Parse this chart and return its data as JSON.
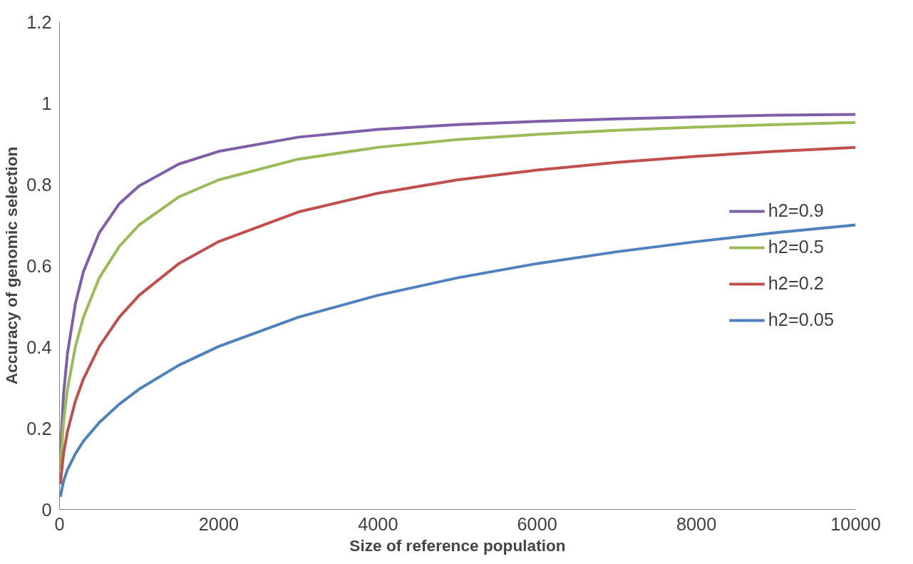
{
  "chart_data": {
    "type": "line",
    "xlabel": "Size of reference population",
    "ylabel": "Accuracy of genomic selection",
    "x": [
      10,
      50,
      100,
      200,
      300,
      500,
      750,
      1000,
      1500,
      2000,
      3000,
      4000,
      5000,
      6000,
      7000,
      8000,
      9000,
      10000
    ],
    "series": [
      {
        "name": "h2=0.9",
        "color": "#7f5fa8",
        "values": [
          0.13,
          0.282,
          0.384,
          0.507,
          0.585,
          0.681,
          0.752,
          0.796,
          0.85,
          0.881,
          0.916,
          0.935,
          0.947,
          0.955,
          0.961,
          0.966,
          0.97,
          0.972
        ]
      },
      {
        "name": "h2=0.5",
        "color": "#9bbb59",
        "values": [
          0.098,
          0.214,
          0.296,
          0.401,
          0.473,
          0.57,
          0.647,
          0.7,
          0.769,
          0.811,
          0.862,
          0.891,
          0.91,
          0.923,
          0.933,
          0.941,
          0.947,
          0.952
        ]
      },
      {
        "name": "h2=0.2",
        "color": "#c0504d",
        "values": [
          0.062,
          0.137,
          0.192,
          0.267,
          0.321,
          0.401,
          0.473,
          0.527,
          0.605,
          0.659,
          0.732,
          0.778,
          0.811,
          0.835,
          0.854,
          0.869,
          0.881,
          0.891
        ]
      },
      {
        "name": "h2=0.05",
        "color": "#4f81bd",
        "values": [
          0.031,
          0.069,
          0.098,
          0.137,
          0.168,
          0.214,
          0.259,
          0.296,
          0.355,
          0.401,
          0.473,
          0.527,
          0.57,
          0.605,
          0.634,
          0.659,
          0.681,
          0.7
        ]
      }
    ],
    "xlim": [
      0,
      10000
    ],
    "xticks": [
      0,
      2000,
      4000,
      6000,
      8000,
      10000
    ],
    "ylim": [
      0,
      1.2
    ],
    "yticks": [
      0,
      0.2,
      0.4,
      0.6,
      0.8,
      1,
      1.2
    ],
    "grid": false,
    "legend": "right",
    "marker": "none",
    "line_style": "solid"
  }
}
